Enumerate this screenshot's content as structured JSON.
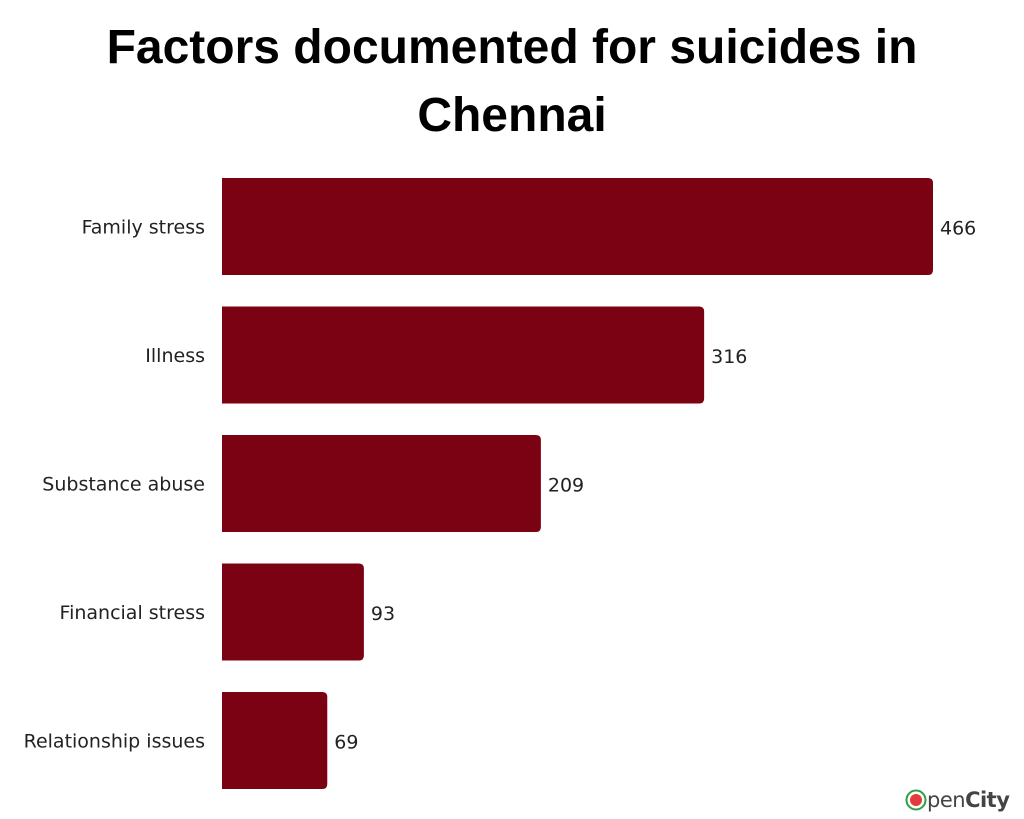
{
  "chart_data": {
    "type": "bar",
    "orientation": "horizontal",
    "title": "Factors documented for suicides in Chennai",
    "categories": [
      "Family stress",
      "Illness",
      "Substance abuse",
      "Financial stress",
      "Relationship issues"
    ],
    "values": [
      466,
      316,
      209,
      93,
      69
    ],
    "xlabel": "",
    "ylabel": "",
    "xlim": [
      0,
      466
    ],
    "grid": false,
    "legend": "none",
    "bar_color": "#7b0213"
  },
  "brand": {
    "logo_text": "OpenCity",
    "logo_colors": [
      "#e23b3b",
      "#2f9e44"
    ]
  }
}
